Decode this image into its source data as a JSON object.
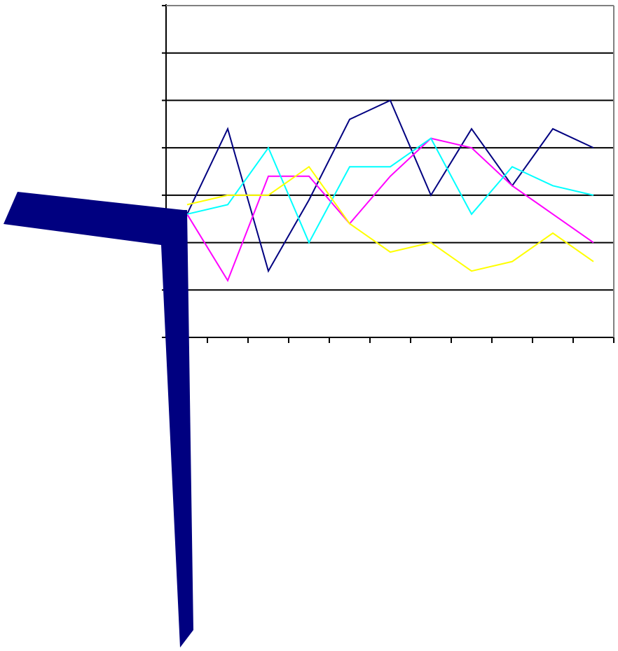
{
  "chart_data": {
    "type": "line",
    "title": "",
    "xlabel": "",
    "ylabel": "",
    "grid": true,
    "x_count": 11,
    "ylim": [
      0,
      7
    ],
    "y_ticks": [
      0,
      1,
      2,
      3,
      4,
      5,
      6,
      7
    ],
    "series": [
      {
        "color": "#000080",
        "values": [
          2.6,
          4.4,
          1.4,
          2.9,
          4.6,
          5.0,
          3.0,
          4.4,
          3.2,
          4.4,
          4.0
        ]
      },
      {
        "color": "#FF00FF",
        "values": [
          2.6,
          1.2,
          3.4,
          3.4,
          2.4,
          3.4,
          4.2,
          4.0,
          3.2,
          2.6,
          2.0
        ]
      },
      {
        "color": "#00FFFF",
        "values": [
          2.6,
          2.8,
          4.0,
          2.0,
          3.6,
          3.6,
          4.2,
          2.6,
          3.6,
          3.2,
          3.0
        ]
      },
      {
        "color": "#FFFF00",
        "values": [
          2.8,
          3.0,
          3.0,
          3.6,
          2.4,
          1.8,
          2.0,
          1.4,
          1.6,
          2.2,
          1.6
        ]
      }
    ]
  },
  "decoration": {
    "arrow_color": "#000080",
    "arrow_icon": "bent-arrow-icon"
  }
}
